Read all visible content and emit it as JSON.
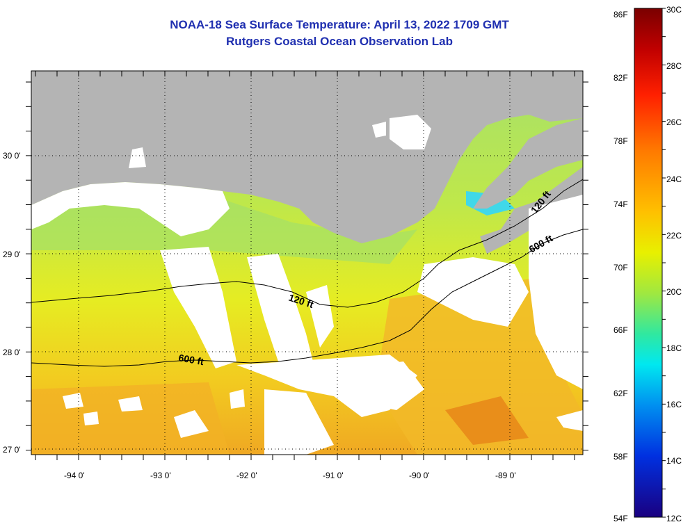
{
  "title": {
    "line1": "NOAA-18 Sea Surface Temperature:  April 13, 2022 1709 GMT",
    "line2": "Rutgers Coastal Ocean Observation Lab"
  },
  "map": {
    "lat_labels": [
      "30 0'",
      "29 0'",
      "28 0'",
      "27 0'"
    ],
    "lon_labels": [
      "-94 0'",
      "-93 0'",
      "-92 0'",
      "-91 0'",
      "-90 0'",
      "-89 0'"
    ],
    "contours": [
      {
        "label": "120 ft",
        "depth_ft": 120
      },
      {
        "label": "600 ft",
        "depth_ft": 600
      },
      {
        "label": "120 ft",
        "depth_ft": 120
      },
      {
        "label": "600 ft",
        "depth_ft": 600
      }
    ],
    "colors": {
      "land": "#b4b4b4",
      "cloud": "#ffffff",
      "warm_water": "#f0a020",
      "mid_water": "#e8e820",
      "cool_water": "#a8e060"
    }
  },
  "colorbar": {
    "fahrenheit_labels": [
      "86F",
      "82F",
      "78F",
      "74F",
      "70F",
      "66F",
      "62F",
      "58F",
      "54F"
    ],
    "celsius_labels": [
      "30C",
      "28C",
      "26C",
      "24C",
      "22C",
      "20C",
      "18C",
      "16C",
      "14C",
      "12C"
    ],
    "range_c": [
      12,
      30
    ]
  }
}
